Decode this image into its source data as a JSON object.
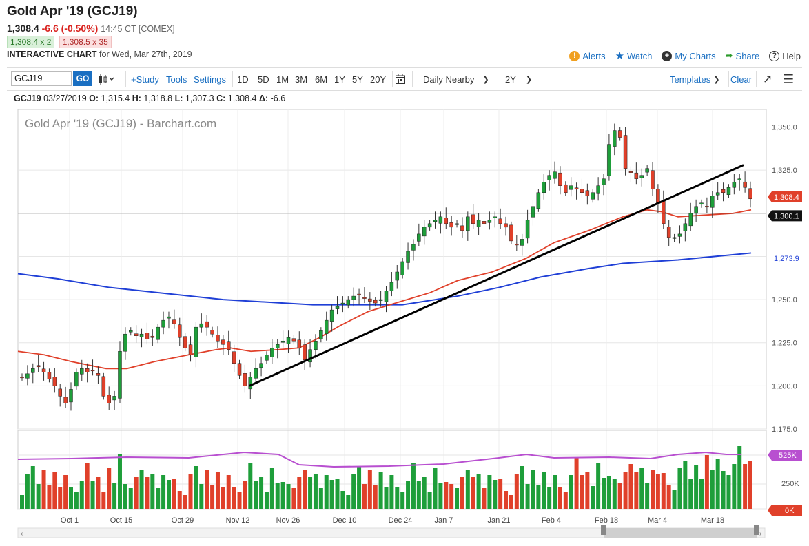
{
  "header": {
    "title": "Gold Apr '19 (GCJ19)",
    "last": "1,308.4",
    "change": "-6.6 (-0.50%)",
    "time": "14:45 CT [COMEX]",
    "bid": "1,308.4 x 2",
    "ask": "1,308.5 x 35",
    "chart_label": "INTERACTIVE CHART",
    "chart_for": "for Wed, Mar 27th, 2019"
  },
  "links": {
    "alerts": "Alerts",
    "watch": "Watch",
    "mycharts": "My Charts",
    "share": "Share",
    "help": "Help"
  },
  "toolbar": {
    "symbol": "GCJ19",
    "go": "GO",
    "study": "+Study",
    "tools": "Tools",
    "settings": "Settings",
    "periods": [
      "1D",
      "5D",
      "1M",
      "3M",
      "6M",
      "1Y",
      "5Y",
      "20Y"
    ],
    "interval": "Daily Nearby",
    "range": "2Y",
    "templates": "Templates",
    "clear": "Clear"
  },
  "ohlc_bar": {
    "symbol": "GCJ19",
    "date": "03/27/2019",
    "o_label": "O:",
    "o": "1,315.4",
    "h_label": "H:",
    "h": "1,318.8",
    "l_label": "L:",
    "l": "1,307.3",
    "c_label": "C:",
    "c": "1,308.4",
    "d_label": "Δ:",
    "d": "-6.6"
  },
  "colors": {
    "up": "#1e9e3a",
    "down": "#e0402a",
    "ma_fast": "#e0402a",
    "ma_slow": "#1f3fd6",
    "volume_ma": "#b84fd0",
    "accent": "#1a6fc2"
  },
  "chart_data": {
    "type": "candlestick",
    "title": "Gold Apr '19 (GCJ19) - Barchart.com",
    "ylim": [
      1175,
      1365
    ],
    "y_ticks": [
      "1,350.0",
      "1,325.0",
      "1,300.0",
      "1,275.0",
      "1,250.0",
      "1,225.0",
      "1,200.0",
      "1,175.0"
    ],
    "x_ticks": [
      "Oct 1",
      "Oct 15",
      "Oct 29",
      "Nov 12",
      "Nov 26",
      "Dec 10",
      "Dec 24",
      "Jan 7",
      "Jan 21",
      "Feb 4",
      "Feb 18",
      "Mar 4",
      "Mar 18"
    ],
    "price_labels": {
      "last": "1,308.4",
      "horizontal_line": "1,300.1",
      "ma_slow": "1,273.9"
    },
    "horizontal_line": 1300.1,
    "trendlines": [
      {
        "from": [
          "Nov 14",
          1200
        ],
        "to": [
          "Mar 21",
          1328
        ]
      }
    ],
    "closes": [
      1205,
      1207,
      1210,
      1211,
      1208,
      1204,
      1200,
      1194,
      1190,
      1198,
      1208,
      1210,
      1208,
      1209,
      1206,
      1194,
      1190,
      1194,
      1220,
      1230,
      1232,
      1229,
      1230,
      1227,
      1228,
      1234,
      1238,
      1240,
      1236,
      1228,
      1222,
      1218,
      1234,
      1236,
      1234,
      1230,
      1226,
      1224,
      1221,
      1213,
      1206,
      1200,
      1205,
      1210,
      1213,
      1218,
      1222,
      1224,
      1226,
      1228,
      1226,
      1222,
      1215,
      1221,
      1226,
      1232,
      1238,
      1244,
      1246,
      1248,
      1250,
      1252,
      1253,
      1251,
      1249,
      1248,
      1250,
      1255,
      1260,
      1266,
      1272,
      1278,
      1282,
      1288,
      1292,
      1294,
      1296,
      1298,
      1294,
      1292,
      1294,
      1290,
      1298,
      1294,
      1296,
      1294,
      1296,
      1298,
      1294,
      1292,
      1284,
      1282,
      1285,
      1296,
      1304,
      1312,
      1318,
      1322,
      1324,
      1316,
      1312,
      1316,
      1314,
      1312,
      1310,
      1312,
      1316,
      1320,
      1340,
      1348,
      1344,
      1326,
      1324,
      1320,
      1322,
      1326,
      1314,
      1306,
      1294,
      1286,
      1286,
      1288,
      1294,
      1300,
      1304,
      1306,
      1304,
      1310,
      1312,
      1312,
      1315,
      1318,
      1320,
      1315,
      1308.4
    ],
    "ma_fast": {
      "start": 1220,
      "end": 1301
    },
    "ma_slow": {
      "start": 1265,
      "end": 1273.9
    },
    "volume": {
      "y_ticks": [
        "525K",
        "250K",
        "0K"
      ],
      "labels": [
        "525K",
        "0K"
      ]
    }
  }
}
